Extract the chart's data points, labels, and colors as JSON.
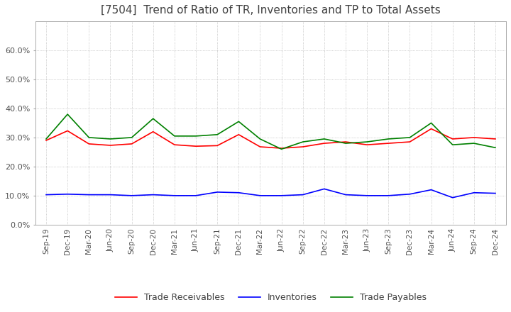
{
  "title": "[7504]  Trend of Ratio of TR, Inventories and TP to Total Assets",
  "title_fontsize": 11,
  "title_color": "#404040",
  "x_labels": [
    "Sep-19",
    "Dec-19",
    "Mar-20",
    "Jun-20",
    "Sep-20",
    "Dec-20",
    "Mar-21",
    "Jun-21",
    "Sep-21",
    "Dec-21",
    "Mar-22",
    "Jun-22",
    "Sep-22",
    "Dec-22",
    "Mar-23",
    "Jun-23",
    "Sep-23",
    "Dec-23",
    "Mar-24",
    "Jun-24",
    "Sep-24",
    "Dec-24"
  ],
  "trade_receivables": [
    0.29,
    0.323,
    0.278,
    0.273,
    0.278,
    0.32,
    0.275,
    0.27,
    0.272,
    0.31,
    0.268,
    0.263,
    0.268,
    0.28,
    0.285,
    0.275,
    0.28,
    0.285,
    0.33,
    0.295,
    0.3,
    0.295
  ],
  "inventories": [
    0.103,
    0.105,
    0.103,
    0.103,
    0.1,
    0.103,
    0.1,
    0.1,
    0.112,
    0.11,
    0.1,
    0.1,
    0.103,
    0.123,
    0.103,
    0.1,
    0.1,
    0.105,
    0.12,
    0.093,
    0.11,
    0.108
  ],
  "trade_payables": [
    0.295,
    0.38,
    0.3,
    0.295,
    0.3,
    0.365,
    0.305,
    0.305,
    0.31,
    0.355,
    0.295,
    0.26,
    0.285,
    0.295,
    0.28,
    0.285,
    0.295,
    0.3,
    0.35,
    0.275,
    0.28,
    0.265
  ],
  "tr_color": "#ff0000",
  "inv_color": "#0000ff",
  "tp_color": "#008000",
  "ylim": [
    0.0,
    0.7
  ],
  "yticks": [
    0.0,
    0.1,
    0.2,
    0.3,
    0.4,
    0.5,
    0.6
  ],
  "background_color": "#ffffff",
  "plot_bg_color": "#ffffff",
  "grid_color": "#aaaaaa",
  "legend_labels": [
    "Trade Receivables",
    "Inventories",
    "Trade Payables"
  ]
}
